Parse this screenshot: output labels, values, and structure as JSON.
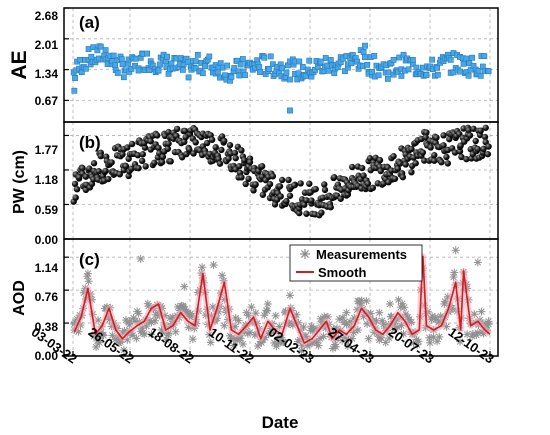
{
  "chart_data": [
    {
      "panel": "(a)",
      "type": "scatter",
      "ylabel": "AE",
      "ylim": [
        0.2,
        2.68
      ],
      "yticks": [
        "0.67",
        "1.34",
        "2.01",
        "2.68"
      ],
      "marker": "square",
      "color": "#46a8e8",
      "grid": true,
      "series": [
        {
          "x": [
            "2022-03-05",
            "2022-03-20",
            "2022-04-05",
            "2022-04-20",
            "2022-05-05",
            "2022-05-25",
            "2022-06-15",
            "2022-07-05",
            "2022-07-25",
            "2022-08-15",
            "2022-09-05",
            "2022-09-25",
            "2022-10-15",
            "2022-11-05",
            "2022-11-25",
            "2022-12-15",
            "2023-01-05",
            "2023-01-25",
            "2023-02-15",
            "2023-03-05",
            "2023-03-25",
            "2023-04-15",
            "2023-05-05",
            "2023-05-25",
            "2023-06-15",
            "2023-07-05",
            "2023-07-25",
            "2023-08-15",
            "2023-09-05",
            "2023-09-25",
            "2023-10-10"
          ],
          "y": [
            1.25,
            1.55,
            1.62,
            1.7,
            1.45,
            1.35,
            1.55,
            1.5,
            1.42,
            1.35,
            1.48,
            1.4,
            1.3,
            1.38,
            1.45,
            1.4,
            1.35,
            1.3,
            1.4,
            1.45,
            1.5,
            1.55,
            1.4,
            1.35,
            1.45,
            1.4,
            1.35,
            1.5,
            1.45,
            1.4,
            1.5
          ]
        }
      ],
      "outliers": [
        {
          "x": "2022-03-05",
          "y": 0.88
        },
        {
          "x": "2023-01-05",
          "y": 0.45
        },
        {
          "x": "2023-04-20",
          "y": 1.86
        }
      ]
    },
    {
      "panel": "(b)",
      "type": "scatter",
      "ylabel": "PW (cm)",
      "ylim": [
        0.0,
        2.0
      ],
      "yticks": [
        "0.00",
        "0.59",
        "1.18",
        "1.77"
      ],
      "marker": "sphere",
      "color": "#000000",
      "grid": true,
      "series": [
        {
          "x": [
            "2022-03-05",
            "2022-03-25",
            "2022-04-15",
            "2022-05-05",
            "2022-05-25",
            "2022-06-15",
            "2022-07-05",
            "2022-07-25",
            "2022-08-15",
            "2022-09-05",
            "2022-09-25",
            "2022-10-15",
            "2022-11-05",
            "2022-11-25",
            "2022-12-15",
            "2023-01-05",
            "2023-01-25",
            "2023-02-15",
            "2023-03-05",
            "2023-03-25",
            "2023-04-15",
            "2023-05-05",
            "2023-05-25",
            "2023-06-15",
            "2023-07-05",
            "2023-07-25",
            "2023-08-15",
            "2023-09-05",
            "2023-09-25",
            "2023-10-10"
          ],
          "y": [
            0.85,
            1.05,
            1.25,
            1.3,
            1.35,
            1.5,
            1.55,
            1.6,
            1.7,
            1.65,
            1.55,
            1.45,
            1.2,
            1.0,
            0.85,
            0.75,
            0.7,
            0.68,
            0.75,
            0.95,
            1.05,
            1.15,
            1.25,
            1.3,
            1.55,
            1.6,
            1.55,
            1.65,
            1.6,
            1.7
          ]
        }
      ]
    },
    {
      "panel": "(c)",
      "type": "line",
      "ylabel": "AOD",
      "ylim": [
        0.0,
        1.35
      ],
      "yticks": [
        "0.00",
        "0.38",
        "0.76",
        "1.14"
      ],
      "grid": true,
      "legend": {
        "position": "top-center",
        "entries": [
          "Measurements",
          "Smooth"
        ]
      },
      "series": [
        {
          "name": "Measurements",
          "marker": "asterisk",
          "color": "#909090",
          "x": [
            "2022-03-05",
            "2022-03-25",
            "2022-04-10",
            "2022-04-25",
            "2022-05-10",
            "2022-05-25",
            "2022-06-10",
            "2022-06-25",
            "2022-07-10",
            "2022-07-25",
            "2022-08-10",
            "2022-08-25",
            "2022-09-05",
            "2022-09-20",
            "2022-10-05",
            "2022-10-20",
            "2022-11-05",
            "2022-11-20",
            "2022-12-05",
            "2022-12-20",
            "2023-01-05",
            "2023-01-20",
            "2023-02-05",
            "2023-02-20",
            "2023-03-10",
            "2023-03-25",
            "2023-04-10",
            "2023-04-25",
            "2023-05-10",
            "2023-05-25",
            "2023-06-10",
            "2023-06-25",
            "2023-07-10",
            "2023-07-25",
            "2023-08-10",
            "2023-08-25",
            "2023-09-10",
            "2023-09-25",
            "2023-10-10"
          ],
          "y": [
            0.3,
            0.95,
            0.2,
            0.45,
            0.15,
            0.4,
            1.12,
            0.25,
            0.55,
            0.45,
            0.8,
            0.35,
            0.9,
            1.05,
            0.35,
            0.2,
            0.5,
            0.25,
            0.6,
            0.15,
            0.7,
            0.3,
            0.15,
            0.4,
            0.2,
            0.5,
            0.3,
            0.2,
            0.5,
            0.6,
            0.35,
            0.25,
            1.33,
            0.3,
            0.45,
            1.22,
            0.25,
            1.08,
            0.4
          ]
        },
        {
          "name": "Smooth",
          "color": "#cc1f1f",
          "x": [
            "2022-03-05",
            "2022-03-15",
            "2022-03-25",
            "2022-04-05",
            "2022-04-15",
            "2022-04-25",
            "2022-05-05",
            "2022-05-15",
            "2022-05-25",
            "2022-06-05",
            "2022-06-15",
            "2022-06-25",
            "2022-07-05",
            "2022-07-15",
            "2022-07-25",
            "2022-08-05",
            "2022-08-15",
            "2022-08-25",
            "2022-09-05",
            "2022-09-15",
            "2022-09-25",
            "2022-10-05",
            "2022-10-15",
            "2022-10-25",
            "2022-11-05",
            "2022-11-15",
            "2022-11-25",
            "2022-12-05",
            "2022-12-15",
            "2022-12-25",
            "2023-01-05",
            "2023-01-15",
            "2023-01-25",
            "2023-02-05",
            "2023-02-15",
            "2023-02-25",
            "2023-03-05",
            "2023-03-15",
            "2023-03-25",
            "2023-04-05",
            "2023-04-15",
            "2023-04-25",
            "2023-05-05",
            "2023-05-15",
            "2023-05-25",
            "2023-06-05",
            "2023-06-15",
            "2023-06-25",
            "2023-07-05",
            "2023-07-10",
            "2023-07-15",
            "2023-07-25",
            "2023-08-05",
            "2023-08-15",
            "2023-08-25",
            "2023-09-01",
            "2023-09-05",
            "2023-09-15",
            "2023-09-25",
            "2023-10-05",
            "2023-10-12"
          ],
          "y": [
            0.28,
            0.45,
            0.78,
            0.25,
            0.35,
            0.55,
            0.3,
            0.2,
            0.28,
            0.35,
            0.4,
            0.55,
            0.6,
            0.3,
            0.35,
            0.5,
            0.4,
            0.35,
            0.95,
            0.3,
            0.55,
            0.85,
            0.3,
            0.25,
            0.35,
            0.45,
            0.2,
            0.4,
            0.3,
            0.25,
            0.55,
            0.35,
            0.15,
            0.2,
            0.3,
            0.4,
            0.2,
            0.3,
            0.25,
            0.35,
            0.55,
            0.45,
            0.3,
            0.25,
            0.35,
            0.5,
            0.4,
            0.25,
            0.3,
            1.15,
            0.35,
            0.3,
            0.35,
            0.55,
            0.85,
            0.3,
            0.98,
            0.35,
            0.4,
            0.3,
            0.25
          ]
        }
      ]
    }
  ],
  "xaxis": {
    "label": "Date",
    "ticks": [
      "03-03-22",
      "26-05-22",
      "18-08-22",
      "10-11-22",
      "02-02-23",
      "27-04-23",
      "20-07-23",
      "12-10-23"
    ],
    "tick_dates": [
      "2022-03-03",
      "2022-05-26",
      "2022-08-18",
      "2022-11-10",
      "2023-02-02",
      "2023-04-27",
      "2023-07-20",
      "2023-10-12"
    ]
  }
}
